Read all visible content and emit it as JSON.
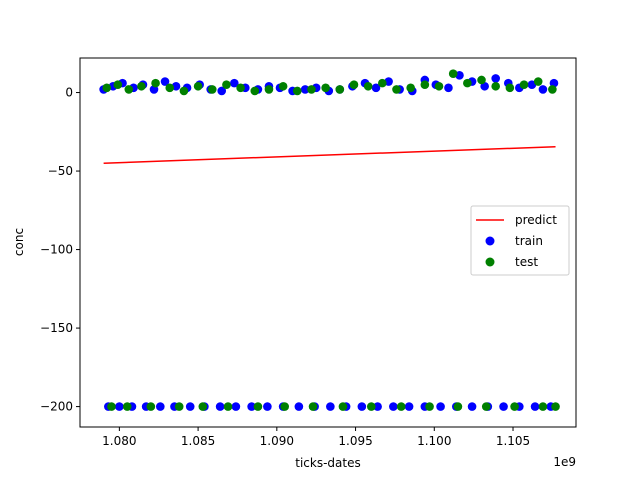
{
  "chart_data": {
    "type": "scatter",
    "xlabel": "ticks-dates",
    "ylabel": "conc",
    "x_offset_label": "1e9",
    "xlim": [
      1077500000,
      1109000000
    ],
    "ylim": [
      -213,
      22
    ],
    "x_ticks": [
      1080000000,
      1085000000,
      1090000000,
      1095000000,
      1100000000,
      1105000000
    ],
    "x_tick_labels": [
      "1.080",
      "1.085",
      "1.090",
      "1.095",
      "1.100",
      "1.105"
    ],
    "y_ticks": [
      0,
      -50,
      -100,
      -150,
      -200
    ],
    "y_tick_labels": [
      "0",
      "−50",
      "−100",
      "−150",
      "−200"
    ],
    "grid": false,
    "legend": {
      "placement": "center-right",
      "entries": [
        "predict",
        "train",
        "test"
      ]
    },
    "series": [
      {
        "name": "predict",
        "kind": "line",
        "color": "#ff0000",
        "x": [
          1079000000,
          1107700000
        ],
        "y": [
          -45,
          -34.5
        ]
      },
      {
        "name": "train",
        "kind": "scatter",
        "color": "#0000ff",
        "x": [
          1079000000,
          1079600000,
          1080200000,
          1080900000,
          1081500000,
          1082200000,
          1082900000,
          1083600000,
          1084300000,
          1085100000,
          1085800000,
          1086500000,
          1087300000,
          1088000000,
          1088800000,
          1089500000,
          1090200000,
          1091000000,
          1091800000,
          1092500000,
          1093300000,
          1094000000,
          1094800000,
          1095600000,
          1096300000,
          1097100000,
          1097800000,
          1098600000,
          1099400000,
          1100100000,
          1100900000,
          1101600000,
          1102400000,
          1103200000,
          1103900000,
          1104700000,
          1105400000,
          1106200000,
          1106900000,
          1107600000,
          1079300000,
          1080000000,
          1080800000,
          1081700000,
          1082600000,
          1083500000,
          1084500000,
          1085400000,
          1086400000,
          1087400000,
          1088400000,
          1089400000,
          1090400000,
          1091400000,
          1092400000,
          1093400000,
          1094400000,
          1095400000,
          1096400000,
          1097400000,
          1098400000,
          1099400000,
          1100400000,
          1101400000,
          1102400000,
          1103400000,
          1104400000,
          1105400000,
          1106400000,
          1107400000
        ],
        "y": [
          2,
          4,
          6,
          3,
          5,
          2,
          7,
          4,
          3,
          5,
          2,
          1,
          6,
          3,
          2,
          4,
          3,
          1,
          2,
          3,
          1,
          2,
          4,
          6,
          3,
          7,
          2,
          1,
          8,
          5,
          3,
          11,
          7,
          4,
          9,
          6,
          3,
          5,
          2,
          6,
          -200,
          -200,
          -200,
          -200,
          -200,
          -200,
          -200,
          -200,
          -200,
          -200,
          -200,
          -200,
          -200,
          -200,
          -200,
          -200,
          -200,
          -200,
          -200,
          -200,
          -200,
          -200,
          -200,
          -200,
          -200,
          -200,
          -200,
          -200,
          -200,
          -200
        ]
      },
      {
        "name": "test",
        "kind": "scatter",
        "color": "#008000",
        "x": [
          1079200000,
          1079900000,
          1080600000,
          1081400000,
          1082300000,
          1083200000,
          1084100000,
          1085000000,
          1085900000,
          1086800000,
          1087700000,
          1088600000,
          1089500000,
          1090400000,
          1091300000,
          1092200000,
          1093100000,
          1094000000,
          1094900000,
          1095800000,
          1096700000,
          1097600000,
          1098500000,
          1099400000,
          1100300000,
          1101200000,
          1102100000,
          1103000000,
          1103900000,
          1104800000,
          1105700000,
          1106600000,
          1107500000,
          1079500000,
          1080500000,
          1082000000,
          1083800000,
          1085300000,
          1086900000,
          1088800000,
          1090500000,
          1092300000,
          1094200000,
          1096000000,
          1097900000,
          1099700000,
          1101500000,
          1103300000,
          1105100000,
          1106900000,
          1107700000
        ],
        "y": [
          3,
          5,
          2,
          4,
          6,
          3,
          1,
          4,
          2,
          5,
          3,
          1,
          2,
          4,
          1,
          2,
          3,
          2,
          5,
          4,
          6,
          2,
          3,
          5,
          4,
          12,
          6,
          8,
          4,
          3,
          5,
          7,
          2,
          -200,
          -200,
          -200,
          -200,
          -200,
          -200,
          -200,
          -200,
          -200,
          -200,
          -200,
          -200,
          -200,
          -200,
          -200,
          -200,
          -200,
          -200
        ]
      }
    ]
  }
}
